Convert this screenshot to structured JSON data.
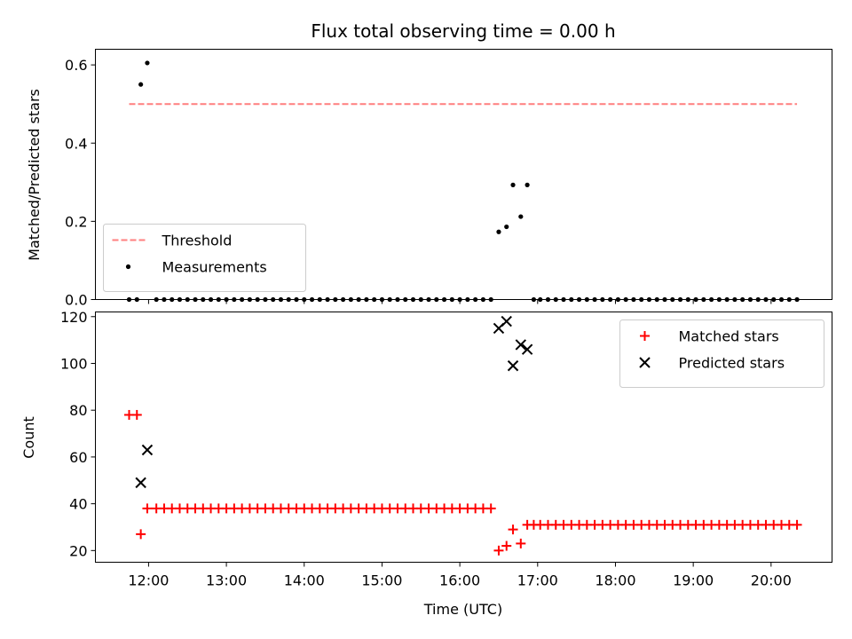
{
  "chart_data": [
    {
      "type": "scatter",
      "title": "Flux total observing time = 0.00 h",
      "xlabel": "",
      "ylabel": "Matched/Predicted stars",
      "xlim": [
        "11:19",
        "20:47"
      ],
      "ylim": [
        0,
        0.64
      ],
      "xticks": [
        "12:00",
        "13:00",
        "14:00",
        "15:00",
        "16:00",
        "17:00",
        "18:00",
        "19:00",
        "20:00"
      ],
      "yticks": [
        "0.0",
        "0.2",
        "0.4",
        "0.6"
      ],
      "yticks_values": [
        0,
        0.2,
        0.4,
        0.6
      ],
      "legend": "lower-left",
      "threshold": {
        "name": "Threshold",
        "value": 0.5,
        "x_start": "11:45",
        "x_end": "20:20",
        "color": "#ff7f7f",
        "style": "dashed"
      },
      "series": [
        {
          "name": "Measurements",
          "color": "#000000",
          "marker": "dot",
          "points": [
            [
              "11:45",
              0
            ],
            [
              "11:51",
              0
            ],
            [
              "11:54",
              0.55
            ],
            [
              "11:59",
              0.605
            ],
            [
              "12:06",
              0
            ],
            [
              "12:12",
              0
            ],
            [
              "12:18",
              0
            ],
            [
              "12:24",
              0
            ],
            [
              "12:30",
              0
            ],
            [
              "12:36",
              0
            ],
            [
              "12:42",
              0
            ],
            [
              "12:48",
              0
            ],
            [
              "12:54",
              0
            ],
            [
              "13:00",
              0
            ],
            [
              "13:06",
              0
            ],
            [
              "13:12",
              0
            ],
            [
              "13:18",
              0
            ],
            [
              "13:24",
              0
            ],
            [
              "13:30",
              0
            ],
            [
              "13:36",
              0
            ],
            [
              "13:42",
              0
            ],
            [
              "13:48",
              0
            ],
            [
              "13:54",
              0
            ],
            [
              "14:00",
              0
            ],
            [
              "14:06",
              0
            ],
            [
              "14:12",
              0
            ],
            [
              "14:18",
              0
            ],
            [
              "14:24",
              0
            ],
            [
              "14:30",
              0
            ],
            [
              "14:36",
              0
            ],
            [
              "14:42",
              0
            ],
            [
              "14:48",
              0
            ],
            [
              "14:54",
              0
            ],
            [
              "15:00",
              0
            ],
            [
              "15:06",
              0
            ],
            [
              "15:12",
              0
            ],
            [
              "15:18",
              0
            ],
            [
              "15:24",
              0
            ],
            [
              "15:30",
              0
            ],
            [
              "15:36",
              0
            ],
            [
              "15:42",
              0
            ],
            [
              "15:48",
              0
            ],
            [
              "15:54",
              0
            ],
            [
              "16:00",
              0
            ],
            [
              "16:06",
              0
            ],
            [
              "16:12",
              0
            ],
            [
              "16:18",
              0
            ],
            [
              "16:24",
              0
            ],
            [
              "16:30",
              0.173
            ],
            [
              "16:36",
              0.186
            ],
            [
              "16:41",
              0.293
            ],
            [
              "16:47",
              0.212
            ],
            [
              "16:52",
              0.293
            ],
            [
              "16:57",
              0
            ],
            [
              "17:02",
              0
            ],
            [
              "17:08",
              0
            ],
            [
              "17:14",
              0
            ],
            [
              "17:20",
              0
            ],
            [
              "17:26",
              0
            ],
            [
              "17:32",
              0
            ],
            [
              "17:38",
              0
            ],
            [
              "17:44",
              0
            ],
            [
              "17:50",
              0
            ],
            [
              "17:56",
              0
            ],
            [
              "18:02",
              0
            ],
            [
              "18:08",
              0
            ],
            [
              "18:14",
              0
            ],
            [
              "18:20",
              0
            ],
            [
              "18:26",
              0
            ],
            [
              "18:32",
              0
            ],
            [
              "18:38",
              0
            ],
            [
              "18:44",
              0
            ],
            [
              "18:50",
              0
            ],
            [
              "18:56",
              0
            ],
            [
              "19:02",
              0
            ],
            [
              "19:08",
              0
            ],
            [
              "19:14",
              0
            ],
            [
              "19:20",
              0
            ],
            [
              "19:26",
              0
            ],
            [
              "19:32",
              0
            ],
            [
              "19:38",
              0
            ],
            [
              "19:44",
              0
            ],
            [
              "19:50",
              0
            ],
            [
              "19:56",
              0
            ],
            [
              "20:02",
              0
            ],
            [
              "20:08",
              0
            ],
            [
              "20:14",
              0
            ],
            [
              "20:20",
              0
            ]
          ]
        }
      ]
    },
    {
      "type": "scatter",
      "title": "",
      "xlabel": "Time (UTC)",
      "ylabel": "Count",
      "xlim": [
        "11:19",
        "20:47"
      ],
      "ylim": [
        15,
        122
      ],
      "xticks": [
        "12:00",
        "13:00",
        "14:00",
        "15:00",
        "16:00",
        "17:00",
        "18:00",
        "19:00",
        "20:00"
      ],
      "yticks": [
        "20",
        "40",
        "60",
        "80",
        "100",
        "120"
      ],
      "yticks_values": [
        20,
        40,
        60,
        80,
        100,
        120
      ],
      "legend": "top-right",
      "series": [
        {
          "name": "Matched stars",
          "color": "#ff0000",
          "marker": "plus",
          "points": [
            [
              "11:45",
              78
            ],
            [
              "11:51",
              78
            ],
            [
              "11:54",
              27
            ],
            [
              "11:59",
              38
            ],
            [
              "12:06",
              38
            ],
            [
              "12:12",
              38
            ],
            [
              "12:18",
              38
            ],
            [
              "12:24",
              38
            ],
            [
              "12:30",
              38
            ],
            [
              "12:36",
              38
            ],
            [
              "12:42",
              38
            ],
            [
              "12:48",
              38
            ],
            [
              "12:54",
              38
            ],
            [
              "13:00",
              38
            ],
            [
              "13:06",
              38
            ],
            [
              "13:12",
              38
            ],
            [
              "13:18",
              38
            ],
            [
              "13:24",
              38
            ],
            [
              "13:30",
              38
            ],
            [
              "13:36",
              38
            ],
            [
              "13:42",
              38
            ],
            [
              "13:48",
              38
            ],
            [
              "13:54",
              38
            ],
            [
              "14:00",
              38
            ],
            [
              "14:06",
              38
            ],
            [
              "14:12",
              38
            ],
            [
              "14:18",
              38
            ],
            [
              "14:24",
              38
            ],
            [
              "14:30",
              38
            ],
            [
              "14:36",
              38
            ],
            [
              "14:42",
              38
            ],
            [
              "14:48",
              38
            ],
            [
              "14:54",
              38
            ],
            [
              "15:00",
              38
            ],
            [
              "15:06",
              38
            ],
            [
              "15:12",
              38
            ],
            [
              "15:18",
              38
            ],
            [
              "15:24",
              38
            ],
            [
              "15:30",
              38
            ],
            [
              "15:36",
              38
            ],
            [
              "15:42",
              38
            ],
            [
              "15:48",
              38
            ],
            [
              "15:54",
              38
            ],
            [
              "16:00",
              38
            ],
            [
              "16:06",
              38
            ],
            [
              "16:12",
              38
            ],
            [
              "16:18",
              38
            ],
            [
              "16:24",
              38
            ],
            [
              "16:30",
              20
            ],
            [
              "16:36",
              22
            ],
            [
              "16:41",
              29
            ],
            [
              "16:47",
              23
            ],
            [
              "16:52",
              31
            ],
            [
              "16:57",
              31
            ],
            [
              "17:02",
              31
            ],
            [
              "17:08",
              31
            ],
            [
              "17:14",
              31
            ],
            [
              "17:20",
              31
            ],
            [
              "17:26",
              31
            ],
            [
              "17:32",
              31
            ],
            [
              "17:38",
              31
            ],
            [
              "17:44",
              31
            ],
            [
              "17:50",
              31
            ],
            [
              "17:56",
              31
            ],
            [
              "18:02",
              31
            ],
            [
              "18:08",
              31
            ],
            [
              "18:14",
              31
            ],
            [
              "18:20",
              31
            ],
            [
              "18:26",
              31
            ],
            [
              "18:32",
              31
            ],
            [
              "18:38",
              31
            ],
            [
              "18:44",
              31
            ],
            [
              "18:50",
              31
            ],
            [
              "18:56",
              31
            ],
            [
              "19:02",
              31
            ],
            [
              "19:08",
              31
            ],
            [
              "19:14",
              31
            ],
            [
              "19:20",
              31
            ],
            [
              "19:26",
              31
            ],
            [
              "19:32",
              31
            ],
            [
              "19:38",
              31
            ],
            [
              "19:44",
              31
            ],
            [
              "19:50",
              31
            ],
            [
              "19:56",
              31
            ],
            [
              "20:02",
              31
            ],
            [
              "20:08",
              31
            ],
            [
              "20:14",
              31
            ],
            [
              "20:20",
              31
            ]
          ]
        },
        {
          "name": "Predicted stars",
          "color": "#000000",
          "marker": "x",
          "points": [
            [
              "11:54",
              49
            ],
            [
              "11:59",
              63
            ],
            [
              "16:30",
              115
            ],
            [
              "16:36",
              118
            ],
            [
              "16:41",
              99
            ],
            [
              "16:47",
              108
            ],
            [
              "16:52",
              106
            ]
          ]
        }
      ]
    }
  ]
}
